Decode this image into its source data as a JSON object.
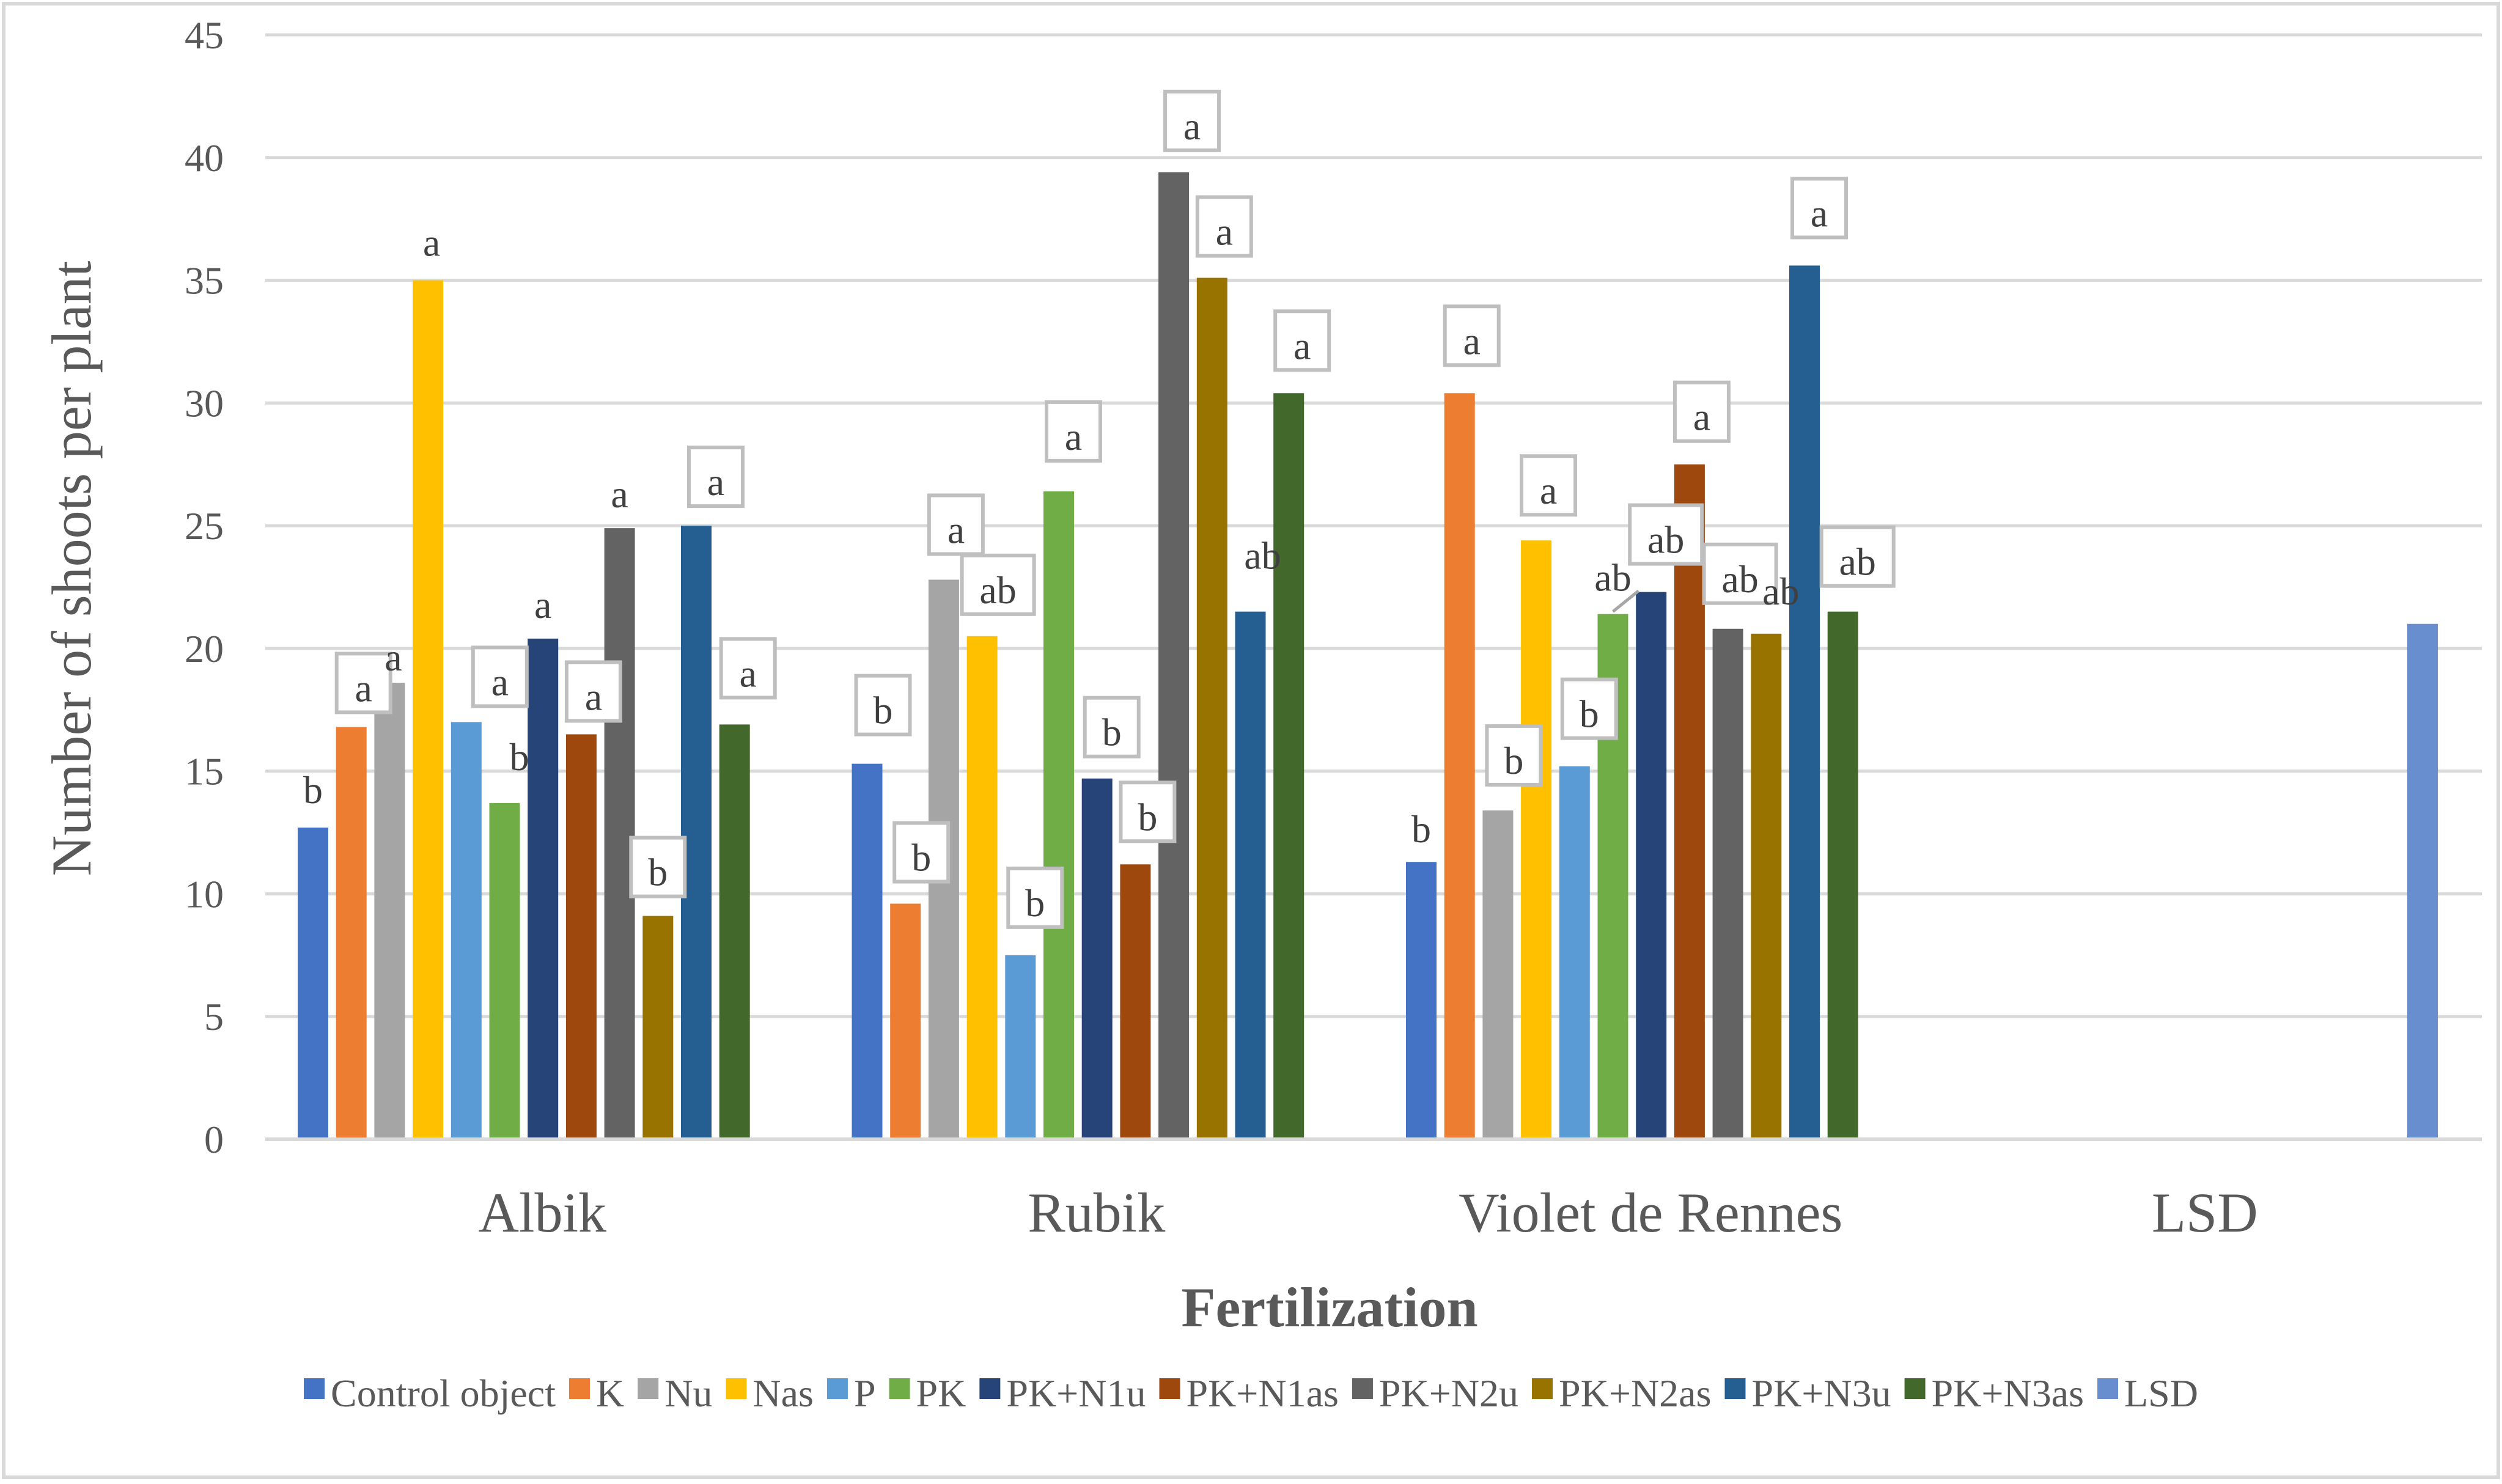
{
  "chart_data": {
    "type": "bar",
    "title": "",
    "xlabel": "Fertilization",
    "ylabel": "Number of shoots per plant",
    "ylim": [
      0,
      45
    ],
    "yticks": [
      0,
      5,
      10,
      15,
      20,
      25,
      30,
      35,
      40,
      45
    ],
    "grid": true,
    "legend_position": "bottom",
    "categories": [
      "Albik",
      "Rubik",
      "Violet de Rennes",
      "LSD"
    ],
    "series": [
      {
        "name": "Control object",
        "color": "#4472C4",
        "values": [
          12.7,
          15.3,
          11.3,
          null
        ],
        "labels": [
          "b",
          "b",
          "b",
          null
        ]
      },
      {
        "name": "K",
        "color": "#ED7D31",
        "values": [
          16.8,
          9.6,
          30.4,
          null
        ],
        "labels": [
          "a",
          "b",
          "a",
          null
        ]
      },
      {
        "name": "Nu",
        "color": "#A5A5A5",
        "values": [
          18.6,
          22.8,
          13.4,
          null
        ],
        "labels": [
          "a",
          "a",
          "b",
          null
        ]
      },
      {
        "name": "Nas",
        "color": "#FFC000",
        "values": [
          35.0,
          20.5,
          24.4,
          null
        ],
        "labels": [
          "a",
          "ab",
          "a",
          null
        ]
      },
      {
        "name": "P",
        "color": "#5B9BD5",
        "values": [
          17.0,
          7.5,
          15.2,
          null
        ],
        "labels": [
          "a",
          "b",
          "b",
          null
        ]
      },
      {
        "name": "PK",
        "color": "#70AD47",
        "values": [
          13.7,
          26.4,
          21.4,
          null
        ],
        "labels": [
          "b",
          "a",
          "ab",
          null
        ]
      },
      {
        "name": "PK+N1u",
        "color": "#264478",
        "values": [
          20.4,
          14.7,
          22.3,
          null
        ],
        "labels": [
          "a",
          "b",
          "ab",
          null
        ]
      },
      {
        "name": "PK+N1as",
        "color": "#9E480E",
        "values": [
          16.5,
          11.2,
          27.5,
          null
        ],
        "labels": [
          "a",
          "b",
          "a",
          null
        ]
      },
      {
        "name": "PK+N2u",
        "color": "#636363",
        "values": [
          24.9,
          39.4,
          20.8,
          null
        ],
        "labels": [
          "a",
          "a",
          "ab",
          null
        ]
      },
      {
        "name": "PK+N2as",
        "color": "#997300",
        "values": [
          9.1,
          35.1,
          20.6,
          null
        ],
        "labels": [
          "b",
          "a",
          "ab",
          null
        ]
      },
      {
        "name": "PK+N3u",
        "color": "#255E91",
        "values": [
          25.0,
          21.5,
          35.6,
          null
        ],
        "labels": [
          "a",
          "ab",
          "a",
          null
        ]
      },
      {
        "name": "PK+N3as",
        "color": "#43682B",
        "values": [
          16.9,
          30.4,
          21.5,
          null
        ],
        "labels": [
          "a",
          "a",
          "ab",
          null
        ]
      },
      {
        "name": "LSD",
        "color": "#698ED0",
        "values": [
          null,
          null,
          null,
          21.0
        ],
        "labels": [
          null,
          null,
          null,
          null
        ]
      }
    ]
  }
}
